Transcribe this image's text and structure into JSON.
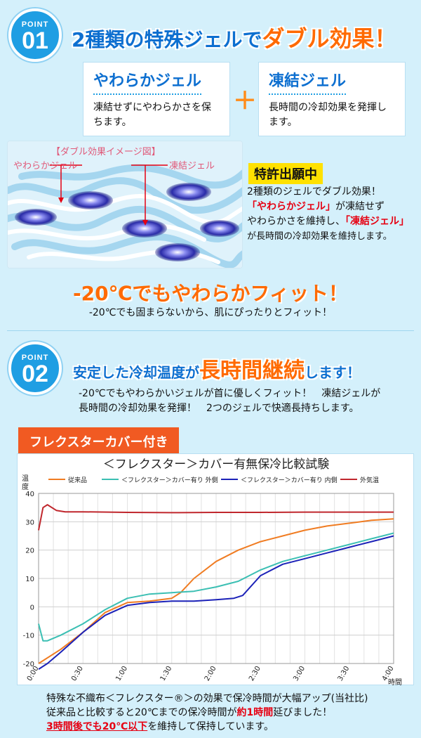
{
  "point1": {
    "badge_label": "POINT",
    "badge_num": "01",
    "heading_main": "2種類の特殊ジェルで",
    "heading_hl": "ダブル効果！",
    "soft_card": {
      "title": "やわらかジェル",
      "desc": "凍結せずにやわらかさを保ちます。"
    },
    "plus": "＋",
    "frozen_card": {
      "title": "凍結ジェル",
      "desc": "長時間の冷却効果を発揮します。"
    },
    "image": {
      "caption": "【ダブル効果イメージ図】",
      "label_soft": "やわらかジェル",
      "label_frozen": "凍結ジェル"
    },
    "patent": "特許出願中",
    "patent_text": {
      "line1": "2種類のジェルでダブル効果！",
      "soft_hl": "「やわらかジェル」",
      "line2b": "が凍結せず",
      "line3a": "やわらかさを維持し、",
      "frozen_hl": "「凍結ジェル」",
      "line4": "が長時間の冷却効果を維持します。"
    },
    "fit_title": "-20℃でもやわらかフィット！",
    "fit_desc": "-20℃でも固まらないから、肌にぴったりとフィット！"
  },
  "point2": {
    "badge_label": "POINT",
    "badge_num": "02",
    "heading_a": "安定した冷却温度が",
    "heading_hl": "長時間継続",
    "heading_b": "します！",
    "desc1": "-20℃でもやわらかいジェルが首に優しくフィット！　凍結ジェルが",
    "desc2": "長時間の冷却効果を発揮！　2つのジェルで快適長持ちします。",
    "cover_label": "フレクスターカバー付き"
  },
  "chart_data": {
    "type": "line",
    "title": "＜フレクスター＞カバー有無保冷比較試験",
    "ylabel": "温度",
    "xlabel": "時間",
    "ylim": [
      -20,
      40
    ],
    "yticks": [
      "40",
      "30",
      "20",
      "10",
      "0",
      "-10",
      "-20"
    ],
    "xticks": [
      "0:00",
      "0:30",
      "1:00",
      "1:30",
      "2:00",
      "2:30",
      "3:00",
      "3:30",
      "4:00"
    ],
    "legend_position": "top",
    "grid": true,
    "series": [
      {
        "name": "従来品",
        "color": "#f07c22",
        "x": [
          0,
          0.05,
          0.25,
          0.5,
          0.75,
          1.0,
          1.25,
          1.5,
          1.6,
          1.75,
          2.0,
          2.25,
          2.5,
          2.75,
          3.0,
          3.25,
          3.5,
          3.75,
          4.0
        ],
        "y": [
          -20,
          -19,
          -15,
          -9,
          -2,
          1.5,
          2,
          3,
          5,
          10,
          16,
          20,
          23,
          25,
          27,
          28.5,
          29.5,
          30.5,
          31
        ]
      },
      {
        "name": "＜フレクスター＞カバー有り 外側",
        "color": "#3bbfb3",
        "x": [
          0,
          0.05,
          0.1,
          0.25,
          0.5,
          0.75,
          1.0,
          1.25,
          1.5,
          1.75,
          2.0,
          2.25,
          2.5,
          2.75,
          3.0,
          3.25,
          3.5,
          3.75,
          4.0
        ],
        "y": [
          -6,
          -12,
          -12,
          -10,
          -6,
          -1,
          3,
          4.5,
          5,
          5.5,
          7,
          9,
          13,
          16,
          18,
          20,
          22,
          24,
          26
        ]
      },
      {
        "name": "＜フレクスター＞カバー有り 内側",
        "color": "#1c22b8",
        "x": [
          0,
          0.1,
          0.25,
          0.5,
          0.75,
          1.0,
          1.25,
          1.5,
          1.75,
          2.0,
          2.2,
          2.3,
          2.5,
          2.75,
          3.0,
          3.25,
          3.5,
          3.75,
          4.0
        ],
        "y": [
          -22,
          -20,
          -16,
          -9,
          -3,
          0.5,
          1.5,
          2,
          2,
          2.5,
          3,
          4,
          11,
          15,
          17,
          19,
          21,
          23,
          25
        ]
      },
      {
        "name": "外気温",
        "color": "#c0272d",
        "x": [
          0,
          0.05,
          0.1,
          0.2,
          0.3,
          0.5,
          1.0,
          1.5,
          2.0,
          2.5,
          3.0,
          3.5,
          4.0
        ],
        "y": [
          27,
          35,
          36,
          34,
          33.5,
          33.5,
          33.3,
          33.2,
          33.3,
          33.3,
          33.4,
          33.4,
          33.4
        ]
      }
    ]
  },
  "bottom": {
    "line1": "特殊な不織布＜フレクスター®＞の効果で保冷時間が大幅アップ(当社比)",
    "line2a": "従来品と比較すると20℃までの保冷時間が",
    "line2hl": "約1時間",
    "line2b": "延びました！",
    "line3hl": "3時間後でも20℃以下",
    "line3b": "を維持して保持しています。"
  },
  "colors": {
    "accent_blue": "#0d6fd0",
    "accent_orange": "#ff6a00",
    "badge": "#1f9ee3",
    "highlight_red": "#e60012"
  }
}
